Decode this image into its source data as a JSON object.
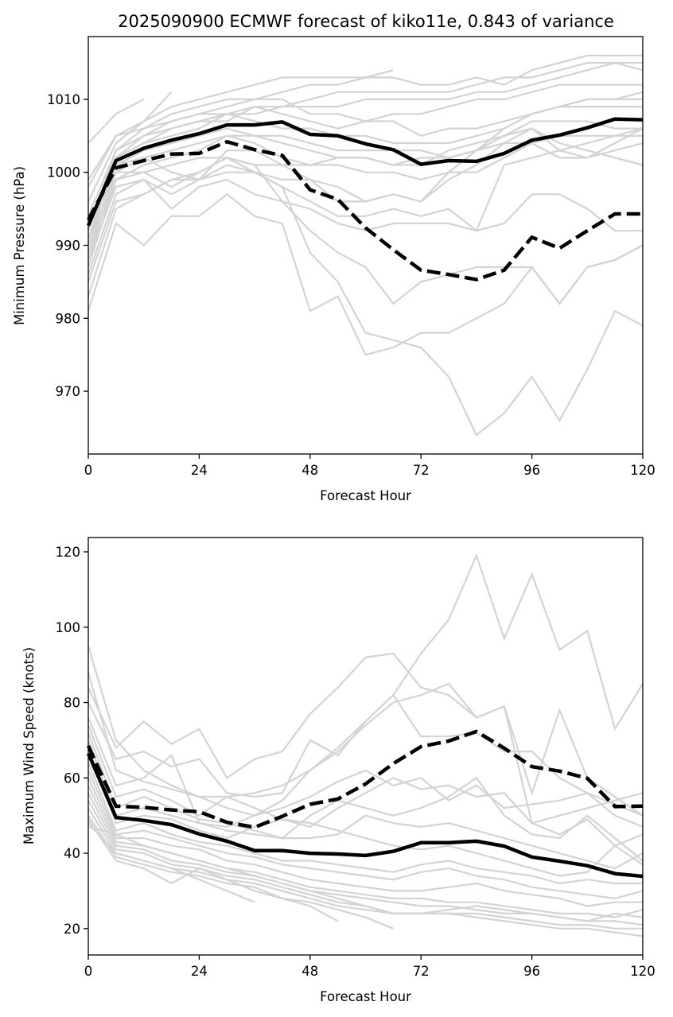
{
  "title": "2025090900 ECMWF forecast of kiko11e, 0.843 of variance",
  "chart_data": [
    {
      "type": "line",
      "panel": "top",
      "title": "2025090900 ECMWF forecast of kiko11e, 0.843 of variance",
      "xlabel": "Forecast Hour",
      "ylabel": "Minimum Pressure (hPa)",
      "xlim": [
        0,
        120
      ],
      "ylim": [
        961.4,
        1018.6
      ],
      "xticks": [
        0,
        24,
        48,
        72,
        96,
        120
      ],
      "xtick_labels": [
        "0",
        "24",
        "48",
        "72",
        "96",
        "120"
      ],
      "yticks": [
        970,
        980,
        990,
        1000,
        1010
      ],
      "ytick_labels": [
        "970",
        "980",
        "990",
        "1000",
        "1010"
      ],
      "grid": false,
      "legend": "none",
      "x": [
        0,
        6,
        12,
        18,
        24,
        30,
        36,
        42,
        48,
        54,
        60,
        66,
        72,
        78,
        84,
        90,
        96,
        102,
        108,
        114,
        120
      ],
      "series": [
        {
          "name": "mean",
          "style": "solid-black",
          "values": [
            992.7,
            1001.6,
            1003.3,
            1004.4,
            1005.3,
            1006.5,
            1006.5,
            1006.9,
            1005.2,
            1005.0,
            1003.9,
            1003.1,
            1001.1,
            1001.6,
            1001.5,
            1002.6,
            1004.4,
            1005.1,
            1006.1,
            1007.3,
            1007.2
          ]
        },
        {
          "name": "leading-mode",
          "style": "dashed-black",
          "values": [
            993.5,
            1000.6,
            1001.6,
            1002.5,
            1002.6,
            1004.2,
            1003.1,
            1002.3,
            997.6,
            996.3,
            992.4,
            989.4,
            986.6,
            986.0,
            985.3,
            986.6,
            991.1,
            989.6,
            992.0,
            994.3,
            994.3
          ]
        }
      ],
      "members": [
        [
          1004,
          1008,
          1010
        ],
        [
          999,
          1005,
          1007,
          1011
        ],
        [
          996,
          1004,
          1007,
          1009,
          1010,
          1011,
          1012,
          1013,
          1013,
          1013,
          1013,
          1014
        ],
        [
          998,
          1005,
          1006,
          1008,
          1009,
          1010,
          1010,
          1011,
          1012,
          1012,
          1013,
          1013,
          1012,
          1012,
          1013,
          1012,
          1014,
          1015,
          1016,
          1016,
          1016
        ],
        [
          994,
          1003,
          1006,
          1007,
          1008,
          1008,
          1009,
          1009,
          1010,
          1011,
          1011,
          1011,
          1011,
          1011,
          1012,
          1013,
          1013,
          1014,
          1015,
          1015,
          1014
        ],
        [
          993,
          1002,
          1005,
          1006,
          1007,
          1008,
          1008,
          1009,
          1009,
          1009,
          1010,
          1010,
          1010,
          1010,
          1011,
          1011,
          1012,
          1013,
          1014,
          1015,
          1015
        ],
        [
          992,
          1003,
          1005,
          1007,
          1008,
          1009,
          1010,
          1010,
          1008,
          1008,
          1007,
          1008,
          1008,
          1009,
          1010,
          1010,
          1011,
          1012,
          1012,
          1012,
          1012
        ],
        [
          990,
          1002,
          1004,
          1006,
          1007,
          1007,
          1009,
          1008,
          1007,
          1006,
          1007,
          1007,
          1005,
          1006,
          1006,
          1007,
          1008,
          1009,
          1010,
          1010,
          1010
        ],
        [
          991,
          1002,
          1004,
          1005,
          1006,
          1008,
          1007,
          1006,
          1006,
          1005,
          1005,
          1004,
          1004,
          1004,
          1005,
          1006,
          1008,
          1009,
          1009,
          1009,
          1009
        ],
        [
          989,
          1001,
          1003,
          1004,
          1005,
          1006,
          1005,
          1005,
          1004,
          1003,
          1003,
          1003,
          1003,
          1002,
          1003,
          1006,
          1008,
          1009,
          1010,
          1010,
          1011
        ],
        [
          988,
          1000,
          1002,
          1003,
          1004,
          1005,
          1005,
          1004,
          1003,
          1002,
          1002,
          1001,
          1001,
          1003,
          1004,
          1005,
          1007,
          1007,
          1007,
          1006,
          1006
        ],
        [
          987,
          999,
          1001,
          1002,
          1003,
          1005,
          1004,
          1002,
          1001,
          1001,
          1000,
          1000,
          999,
          1000,
          1000,
          1002,
          1004,
          1005,
          1005,
          1005,
          1005
        ],
        [
          991,
          1001,
          1002,
          1000,
          999,
          1003,
          1003,
          1001,
          999,
          998,
          996,
          997,
          996,
          1000,
          1003,
          1005,
          1006,
          1004,
          1003,
          1002,
          1001
        ],
        [
          990,
          1000,
          1000,
          1001,
          1002,
          1002,
          1001,
          1001,
          1001,
          1002,
          1002,
          1001,
          1002,
          1002,
          1003,
          1004,
          1006,
          1003,
          1002,
          1003,
          1004
        ],
        [
          989,
          999,
          1000,
          998,
          1000,
          1002,
          1000,
          999,
          999,
          996,
          996,
          997,
          996,
          999,
          1001,
          1004,
          1004,
          1002,
          1002,
          1004,
          1006
        ],
        [
          988,
          998,
          999,
          997,
          999,
          1001,
          1000,
          998,
          996,
          994,
          994,
          995,
          994,
          995,
          992,
          1001,
          1002,
          1003,
          1004,
          1005,
          1006
        ],
        [
          986,
          997,
          999,
          995,
          998,
          999,
          997,
          996,
          995,
          993,
          992,
          993,
          993,
          993,
          992,
          993,
          997,
          997,
          995,
          992,
          992
        ],
        [
          985,
          996,
          997,
          999,
          1000,
          1002,
          1001,
          996,
          992,
          989,
          987,
          982,
          985,
          986,
          987,
          987,
          987,
          982,
          987,
          988,
          990
        ],
        [
          983,
          995,
          997,
          999,
          999,
          1000,
          1000,
          998,
          989,
          985,
          978,
          977,
          976,
          972,
          964,
          967,
          972,
          966,
          973,
          981,
          979
        ],
        [
          981,
          993,
          990,
          994,
          994,
          997,
          994,
          993,
          981,
          983,
          975,
          976,
          978,
          978,
          980,
          982,
          987,
          982,
          987,
          988,
          990
        ]
      ]
    },
    {
      "type": "line",
      "panel": "bottom",
      "title": "",
      "xlabel": "Forecast Hour",
      "ylabel": "Maximum Wind Speed (knots)",
      "xlim": [
        0,
        120
      ],
      "ylim": [
        13.0,
        123.8
      ],
      "xticks": [
        0,
        24,
        48,
        72,
        96,
        120
      ],
      "xtick_labels": [
        "0",
        "24",
        "48",
        "72",
        "96",
        "120"
      ],
      "yticks": [
        20,
        40,
        60,
        80,
        100,
        120
      ],
      "ytick_labels": [
        "20",
        "40",
        "60",
        "80",
        "100",
        "120"
      ],
      "grid": false,
      "legend": "none",
      "x": [
        0,
        6,
        12,
        18,
        24,
        30,
        36,
        42,
        48,
        54,
        60,
        66,
        72,
        78,
        84,
        90,
        96,
        102,
        108,
        114,
        120
      ],
      "series": [
        {
          "name": "mean",
          "style": "solid-black",
          "values": [
            66.5,
            49.5,
            48.7,
            47.6,
            45.1,
            43.2,
            40.7,
            40.7,
            40.0,
            39.8,
            39.4,
            40.5,
            42.8,
            42.8,
            43.2,
            41.9,
            39.0,
            37.9,
            36.7,
            34.6,
            33.9
          ]
        },
        {
          "name": "leading-mode",
          "style": "dashed-black",
          "values": [
            68.5,
            52.5,
            52.2,
            51.5,
            51.0,
            48.2,
            46.9,
            49.8,
            53.0,
            54.4,
            58.4,
            63.8,
            68.3,
            69.8,
            72.3,
            67.9,
            63.0,
            61.8,
            59.9,
            52.4,
            52.5
          ]
        }
      ],
      "members": [
        [
          95,
          70,
          62,
          58,
          55,
          52,
          50,
          54,
          62,
          68,
          75,
          82,
          93,
          102,
          119,
          97,
          114,
          94,
          99,
          73,
          85
        ],
        [
          88,
          62,
          59,
          57,
          55,
          55,
          56,
          58,
          62,
          67,
          74,
          80,
          82,
          85,
          76,
          79,
          56,
          78,
          60,
          55,
          50
        ],
        [
          84,
          68,
          75,
          69,
          73,
          60,
          65,
          67,
          77,
          84,
          92,
          93,
          84,
          82,
          76,
          79,
          48,
          50,
          52,
          54,
          56
        ],
        [
          80,
          65,
          67,
          63,
          65,
          56,
          55,
          56,
          70,
          66,
          75,
          82,
          71,
          71,
          72,
          67,
          67,
          60,
          56,
          53,
          50
        ],
        [
          76,
          58,
          60,
          66,
          48,
          47,
          50,
          52,
          55,
          59,
          62,
          58,
          60,
          54,
          58,
          52,
          53,
          54,
          56,
          50,
          47
        ],
        [
          74,
          55,
          57,
          54,
          50,
          55,
          52,
          49,
          47,
          52,
          56,
          60,
          57,
          58,
          55,
          56,
          48,
          45,
          49,
          42,
          45
        ],
        [
          72,
          52,
          55,
          52,
          49,
          48,
          46,
          44,
          50,
          54,
          52,
          50,
          52,
          55,
          60,
          50,
          45,
          44,
          50,
          44,
          38
        ],
        [
          70,
          50,
          52,
          50,
          48,
          46,
          45,
          44,
          44,
          45,
          50,
          48,
          47,
          48,
          46,
          44,
          42,
          40,
          38,
          36,
          40
        ],
        [
          68,
          48,
          50,
          49,
          46,
          44,
          47,
          49,
          48,
          46,
          44,
          42,
          41,
          42,
          40,
          38,
          36,
          34,
          35,
          42,
          37
        ],
        [
          64,
          46,
          48,
          45,
          43,
          42,
          40,
          38,
          38,
          37,
          36,
          35,
          37,
          38,
          36,
          35,
          34,
          32,
          33,
          32,
          32
        ],
        [
          62,
          45,
          46,
          44,
          42,
          40,
          39,
          37,
          36,
          35,
          34,
          33,
          35,
          36,
          34,
          33,
          31,
          30,
          29,
          28,
          30
        ],
        [
          60,
          44,
          44,
          42,
          41,
          38,
          37,
          35,
          33,
          32,
          31,
          30,
          30,
          31,
          32,
          30,
          29,
          28,
          26,
          27,
          27
        ],
        [
          58,
          43,
          42,
          40,
          38,
          36,
          35,
          33,
          31,
          30,
          29,
          28,
          28,
          27,
          27,
          26,
          25,
          24,
          24,
          23,
          25
        ],
        [
          56,
          42,
          41,
          38,
          37,
          35,
          34,
          32,
          30,
          29,
          28,
          27,
          26,
          26,
          25,
          24,
          24,
          23,
          22,
          22,
          21
        ],
        [
          54,
          41,
          40,
          37,
          36,
          34,
          33,
          31,
          29,
          27,
          26,
          24,
          24,
          24,
          24,
          23,
          22,
          21,
          21,
          20,
          20
        ],
        [
          52,
          40,
          38,
          36,
          35,
          33,
          32,
          30,
          28,
          26,
          25,
          24,
          24,
          24,
          23,
          22,
          21,
          20,
          20,
          19,
          18
        ],
        [
          50,
          39,
          37,
          35,
          34,
          32,
          31,
          28,
          27,
          25,
          23,
          20
        ],
        [
          49,
          38,
          36,
          32,
          36,
          33,
          30,
          28,
          26,
          22
        ],
        [
          48,
          40,
          38,
          36,
          33,
          30,
          27
        ],
        [
          47,
          45,
          42,
          40,
          38,
          36,
          34,
          32,
          30,
          28,
          26,
          24,
          24,
          25,
          26,
          25,
          24,
          23,
          22,
          24,
          23
        ]
      ]
    }
  ]
}
